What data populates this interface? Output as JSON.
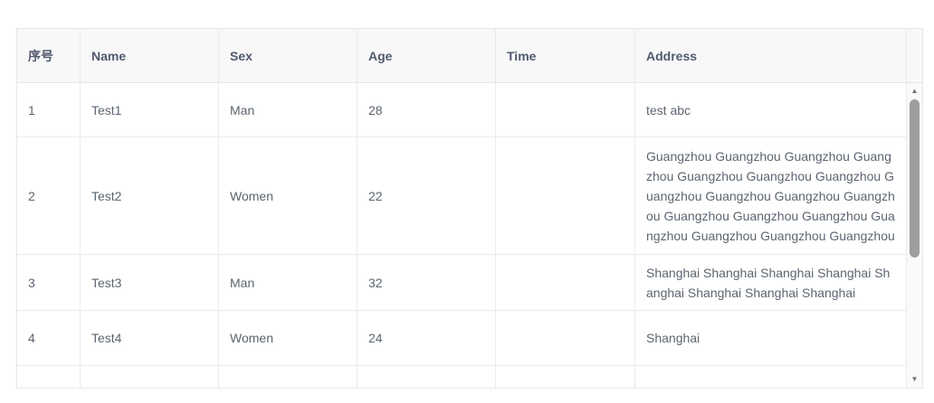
{
  "colors": {
    "table_border": "#e4e6e8",
    "header_background": "#f8f8f9",
    "header_text": "#515a6e",
    "body_text": "#5c6570",
    "scrollbar_track": "#fafafa",
    "scrollbar_thumb": "#9e9e9e",
    "scrollbar_arrow": "#6e6e6e"
  },
  "table": {
    "columns": [
      {
        "key": "index",
        "label": "序号"
      },
      {
        "key": "name",
        "label": "Name"
      },
      {
        "key": "sex",
        "label": "Sex"
      },
      {
        "key": "age",
        "label": "Age"
      },
      {
        "key": "time",
        "label": "Time"
      },
      {
        "key": "address",
        "label": "Address"
      }
    ],
    "rows": [
      {
        "cells": [
          "1",
          "Test1",
          "Man",
          "28",
          "",
          "test abc"
        ]
      },
      {
        "cells": [
          "2",
          "Test2",
          "Women",
          "22",
          "",
          "Guangzhou Guangzhou Guangzhou Guangzhou Guangzhou Guangzhou Guangzhou Guangzhou Guangzhou Guangzhou Guangzhou Guangzhou Guangzhou Guangzhou Guangzhou Guangzhou Guangzhou Guangzhou"
        ]
      },
      {
        "cells": [
          "3",
          "Test3",
          "Man",
          "32",
          "",
          "Shanghai Shanghai Shanghai Shanghai Shanghai Shanghai Shanghai Shanghai"
        ]
      },
      {
        "cells": [
          "4",
          "Test4",
          "Women",
          "24",
          "",
          "Shanghai"
        ]
      },
      {
        "cells": [
          "",
          "",
          "",
          "",
          "",
          ""
        ]
      }
    ]
  },
  "scrollbar": {
    "up_icon": "▲",
    "down_icon": "▼"
  }
}
